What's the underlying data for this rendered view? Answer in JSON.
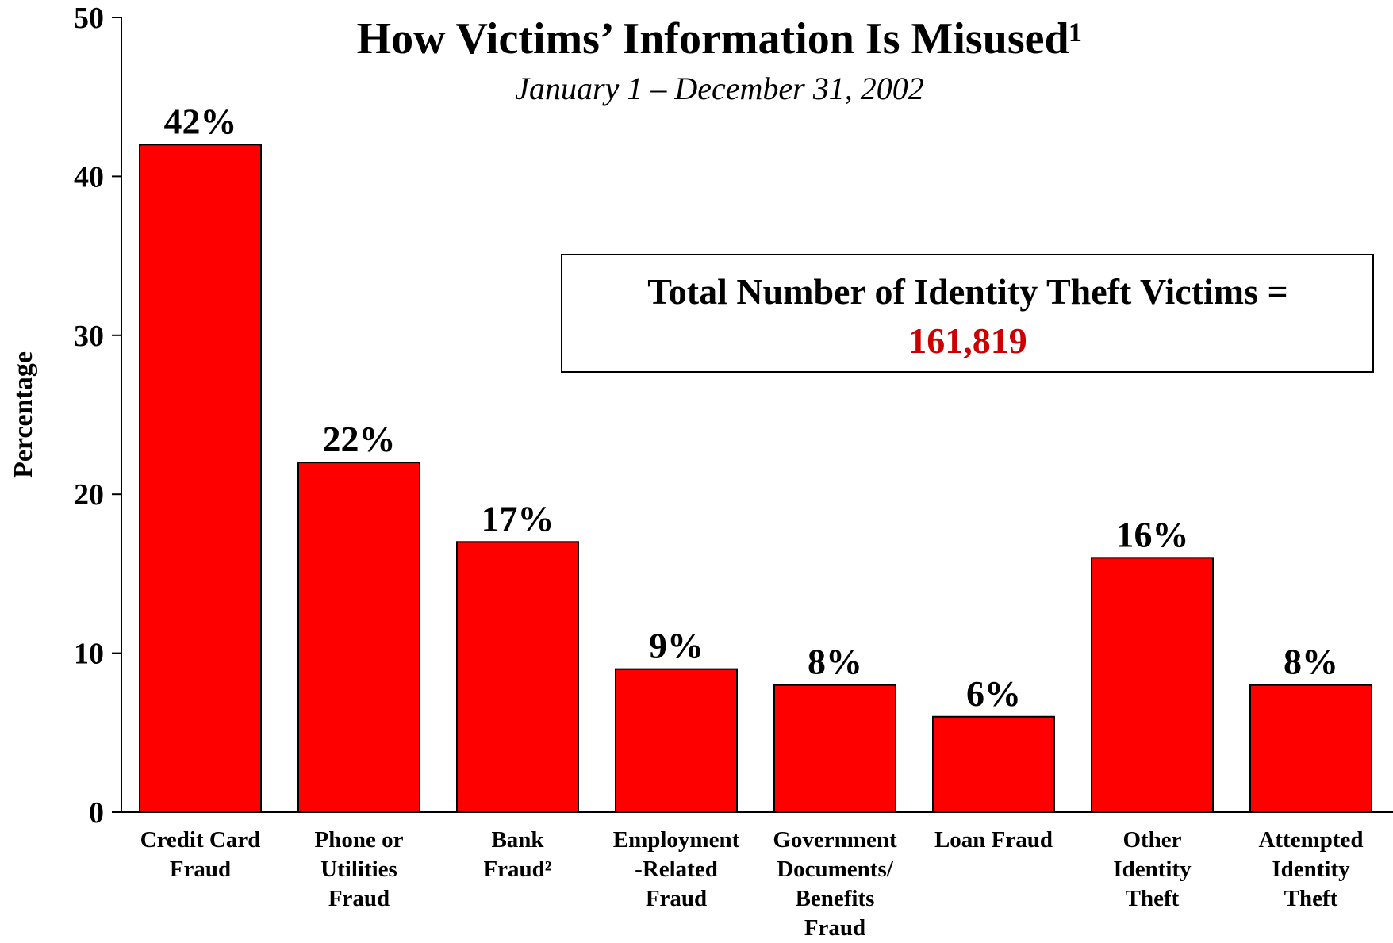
{
  "chart_data": {
    "type": "bar",
    "title": "How Victims’ Information Is Misused¹",
    "subtitle": "January 1 – December 31, 2002",
    "y_label": "Percentage",
    "categories": [
      "Credit Card\nFraud",
      "Phone or\nUtilities\nFraud",
      "Bank\nFraud²",
      "Employment\n-Related\nFraud",
      "Government\nDocuments/\nBenefits\nFraud",
      "Loan Fraud",
      "Other\nIdentity\nTheft",
      "Attempted\nIdentity\nTheft"
    ],
    "values": [
      42,
      22,
      17,
      9,
      8,
      6,
      16,
      8
    ],
    "value_labels": [
      "42%",
      "22%",
      "17%",
      "9%",
      "8%",
      "6%",
      "16%",
      "8%"
    ],
    "color": "#ff0000",
    "ylim": [
      0,
      50
    ],
    "yticks": [
      0,
      10,
      20,
      30,
      40,
      50
    ],
    "annotation": {
      "text": "Total Number of Identity Theft Victims =",
      "highlight": "161,819",
      "highlight_color": "#cc0000"
    }
  }
}
